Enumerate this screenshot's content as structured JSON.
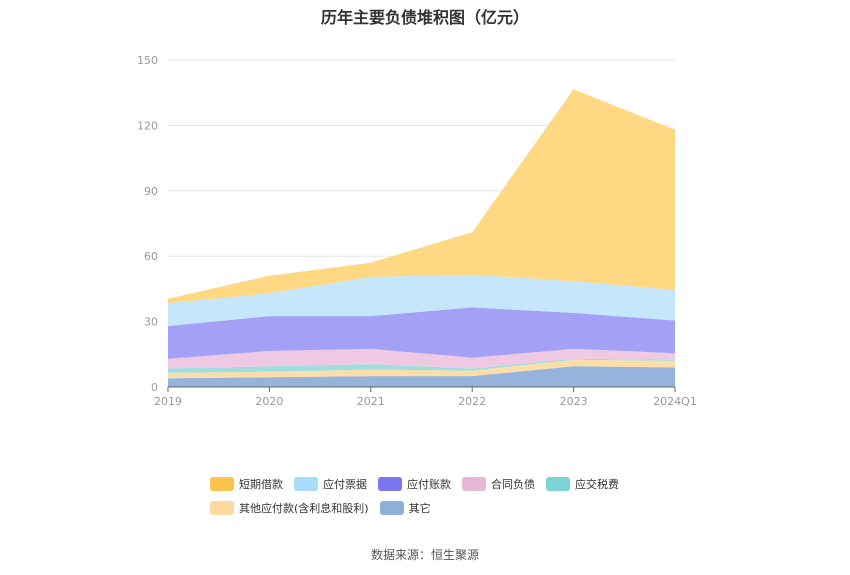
{
  "chart_data": {
    "type": "area",
    "stacked": true,
    "title": "历年主要负债堆积图（亿元）",
    "categories": [
      "2019",
      "2020",
      "2021",
      "2022",
      "2023",
      "2024Q1"
    ],
    "ylim": [
      0,
      150
    ],
    "yticks": [
      0,
      30,
      60,
      90,
      120,
      150
    ],
    "grid": true,
    "legend_position": "bottom",
    "series": [
      {
        "name": "其它",
        "color": "#8fafd9",
        "values": [
          4,
          4.5,
          5,
          5,
          9.5,
          9
        ]
      },
      {
        "name": "其他应付款(含利息和股利)",
        "color": "#fcdca5",
        "values": [
          2.5,
          2.5,
          3,
          2.5,
          3,
          3
        ]
      },
      {
        "name": "应交税费",
        "color": "#9adcdc",
        "values": [
          2,
          2.5,
          2.5,
          1,
          0.5,
          0.5
        ]
      },
      {
        "name": "合同负债",
        "color": "#eec6e2",
        "values": [
          4.5,
          7,
          7,
          5,
          4.5,
          3
        ]
      },
      {
        "name": "应付账款",
        "color": "#9e9cf6",
        "values": [
          15,
          16,
          15,
          23,
          16.5,
          15
        ]
      },
      {
        "name": "应付票据",
        "color": "#c3e6fb",
        "values": [
          10.5,
          10.5,
          18,
          15,
          14.5,
          14
        ]
      },
      {
        "name": "短期借款",
        "color": "#fed67b",
        "values": [
          2,
          8,
          6.5,
          19.5,
          88,
          73.5
        ]
      }
    ]
  },
  "legend": {
    "row1": [
      "短期借款",
      "应付票据",
      "应付账款",
      "合同负债",
      "应交税费"
    ],
    "row2": [
      "其他应付款(含利息和股利)",
      "其它"
    ],
    "colors": {
      "短期借款": "#fbc44c",
      "应付票据": "#a9dcf9",
      "应付账款": "#7a78ef",
      "合同负债": "#e8b7d8",
      "应交税费": "#7dd3d3",
      "其他应付款(含利息和股利)": "#fdd9a1",
      "其它": "#8fafd9"
    }
  },
  "source_text": "数据来源：恒生聚源"
}
